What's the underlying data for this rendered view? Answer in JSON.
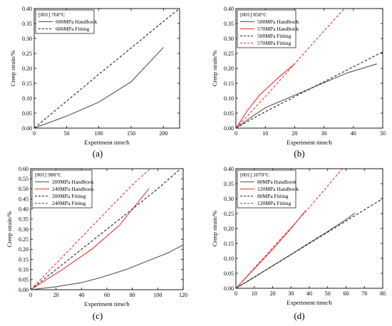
{
  "chart_data": [
    {
      "type": "line",
      "panel_label": "(a)",
      "legend_title": "[001] 760°C",
      "xlabel": "Experiment time/h",
      "ylabel": "Creep strain/%",
      "xlim": [
        0,
        225
      ],
      "ylim": [
        0,
        0.4
      ],
      "xticks": [
        0,
        50,
        100,
        150,
        200
      ],
      "yticks": [
        0.0,
        0.05,
        0.1,
        0.15,
        0.2,
        0.25,
        0.3,
        0.35,
        0.4
      ],
      "ytick_labels": [
        "0.00",
        "0.05",
        "0.10",
        "0.15",
        "0.20",
        "0.25",
        "0.30",
        "0.35",
        "0.40"
      ],
      "grid": false,
      "legend_position": "top-left",
      "series": [
        {
          "name": "600MPa Handbook",
          "color": "#555555",
          "dashed": false,
          "points": [
            [
              0,
              0
            ],
            [
              50,
              0.04
            ],
            [
              100,
              0.087
            ],
            [
              150,
              0.155
            ],
            [
              200,
              0.27
            ]
          ]
        },
        {
          "name": "600MPa Fitting",
          "color": "#222222",
          "dashed": true,
          "points": [
            [
              0,
              0
            ],
            [
              50,
              0.09
            ],
            [
              100,
              0.18
            ],
            [
              150,
              0.268
            ],
            [
              200,
              0.357
            ],
            [
              225,
              0.4
            ]
          ]
        }
      ]
    },
    {
      "type": "line",
      "panel_label": "(b)",
      "legend_title": "[001] 850°C",
      "xlabel": "Experiment time/h",
      "ylabel": "Creep strain/%",
      "xlim": [
        0,
        50
      ],
      "ylim": [
        0,
        0.4
      ],
      "xticks": [
        0,
        10,
        20,
        30,
        40,
        50
      ],
      "yticks": [
        0.0,
        0.05,
        0.1,
        0.15,
        0.2,
        0.25,
        0.3,
        0.35,
        0.4
      ],
      "ytick_labels": [
        "0.00",
        "0.05",
        "0.10",
        "0.15",
        "0.20",
        "0.25",
        "0.30",
        "0.35",
        "0.40"
      ],
      "grid": false,
      "legend_position": "top-left",
      "series": [
        {
          "name": "500MPa Handbook",
          "color": "#555555",
          "dashed": false,
          "points": [
            [
              0,
              0
            ],
            [
              5,
              0.035
            ],
            [
              10,
              0.068
            ],
            [
              20,
              0.11
            ],
            [
              30,
              0.152
            ],
            [
              38,
              0.185
            ],
            [
              48,
              0.215
            ]
          ]
        },
        {
          "name": "570MPa Handbook",
          "color": "#e8322f",
          "dashed": false,
          "points": [
            [
              0,
              0
            ],
            [
              4,
              0.06
            ],
            [
              8,
              0.11
            ],
            [
              14,
              0.165
            ],
            [
              20,
              0.215
            ]
          ]
        },
        {
          "name": "500MPa Fitting",
          "color": "#222222",
          "dashed": true,
          "points": [
            [
              0,
              0
            ],
            [
              10,
              0.055
            ],
            [
              20,
              0.105
            ],
            [
              30,
              0.155
            ],
            [
              40,
              0.205
            ],
            [
              50,
              0.255
            ]
          ]
        },
        {
          "name": "570MPa Fitting",
          "color": "#e8322f",
          "dashed": true,
          "points": [
            [
              0,
              0
            ],
            [
              10,
              0.105
            ],
            [
              20,
              0.215
            ],
            [
              30,
              0.325
            ],
            [
              37,
              0.4
            ]
          ]
        }
      ]
    },
    {
      "type": "line",
      "panel_label": "(c)",
      "legend_title": "[001] 980°C",
      "xlabel": "Experiment time/h",
      "ylabel": "Creep strain/%",
      "xlim": [
        0,
        120
      ],
      "ylim": [
        0,
        0.6
      ],
      "xticks": [
        0,
        20,
        40,
        60,
        80,
        100,
        120
      ],
      "yticks": [
        0.0,
        0.05,
        0.1,
        0.15,
        0.2,
        0.25,
        0.3,
        0.35,
        0.4,
        0.45,
        0.5,
        0.55,
        0.6
      ],
      "ytick_labels": [
        "0.00",
        "0.05",
        "0.10",
        "0.15",
        "0.20",
        "0.25",
        "0.30",
        "0.35",
        "0.40",
        "0.45",
        "0.50",
        "0.55",
        "0.60"
      ],
      "grid": false,
      "legend_position": "top-left",
      "series": [
        {
          "name": "200MPa Handbook",
          "color": "#555555",
          "dashed": false,
          "points": [
            [
              0,
              0
            ],
            [
              20,
              0.015
            ],
            [
              40,
              0.035
            ],
            [
              55,
              0.06
            ],
            [
              75,
              0.1
            ],
            [
              95,
              0.15
            ],
            [
              108,
              0.182
            ],
            [
              120,
              0.222
            ]
          ]
        },
        {
          "name": "240MPa Handbook",
          "color": "#e8322f",
          "dashed": false,
          "points": [
            [
              0,
              0
            ],
            [
              10,
              0.04
            ],
            [
              25,
              0.1
            ],
            [
              48,
              0.2
            ],
            [
              70,
              0.32
            ],
            [
              93,
              0.5
            ]
          ]
        },
        {
          "name": "200MPa Fitting",
          "color": "#222222",
          "dashed": true,
          "points": [
            [
              0,
              0
            ],
            [
              20,
              0.1
            ],
            [
              40,
              0.2
            ],
            [
              60,
              0.3
            ],
            [
              80,
              0.4
            ],
            [
              100,
              0.5
            ],
            [
              118,
              0.6
            ]
          ]
        },
        {
          "name": "240MPa Fitting",
          "color": "#e8322f",
          "dashed": true,
          "points": [
            [
              0,
              0
            ],
            [
              20,
              0.13
            ],
            [
              40,
              0.26
            ],
            [
              60,
              0.39
            ],
            [
              80,
              0.52
            ],
            [
              94,
              0.6
            ]
          ]
        }
      ]
    },
    {
      "type": "line",
      "panel_label": "(d)",
      "legend_title": "[001] 1070°C",
      "xlabel": "Experiment time/h",
      "ylabel": "Creep strain/%",
      "xlim": [
        0,
        80
      ],
      "ylim": [
        0,
        0.4
      ],
      "xticks": [
        0,
        10,
        20,
        30,
        40,
        50,
        60,
        70,
        80
      ],
      "yticks": [
        0.0,
        0.05,
        0.1,
        0.15,
        0.2,
        0.25,
        0.3,
        0.35,
        0.4
      ],
      "ytick_labels": [
        "0.00",
        "0.05",
        "0.10",
        "0.15",
        "0.20",
        "0.25",
        "0.30",
        "0.35",
        "0.40"
      ],
      "grid": false,
      "legend_position": "top-left",
      "series": [
        {
          "name": "80MPa Handbook",
          "color": "#555555",
          "dashed": false,
          "points": [
            [
              0,
              0
            ],
            [
              10,
              0.037
            ],
            [
              20,
              0.075
            ],
            [
              30,
              0.113
            ],
            [
              40,
              0.152
            ],
            [
              50,
              0.19
            ],
            [
              60,
              0.23
            ],
            [
              65,
              0.252
            ]
          ]
        },
        {
          "name": "120MPa Handbook",
          "color": "#e8322f",
          "dashed": false,
          "points": [
            [
              0,
              0
            ],
            [
              10,
              0.065
            ],
            [
              20,
              0.13
            ],
            [
              30,
              0.2
            ],
            [
              38,
              0.26
            ]
          ]
        },
        {
          "name": "80MPa Fitting",
          "color": "#222222",
          "dashed": true,
          "points": [
            [
              0,
              0
            ],
            [
              20,
              0.075
            ],
            [
              40,
              0.15
            ],
            [
              60,
              0.225
            ],
            [
              80,
              0.3
            ]
          ]
        },
        {
          "name": "120MPa Fitting",
          "color": "#e8322f",
          "dashed": true,
          "points": [
            [
              0,
              0
            ],
            [
              20,
              0.135
            ],
            [
              40,
              0.27
            ],
            [
              58,
              0.4
            ]
          ]
        }
      ]
    }
  ]
}
